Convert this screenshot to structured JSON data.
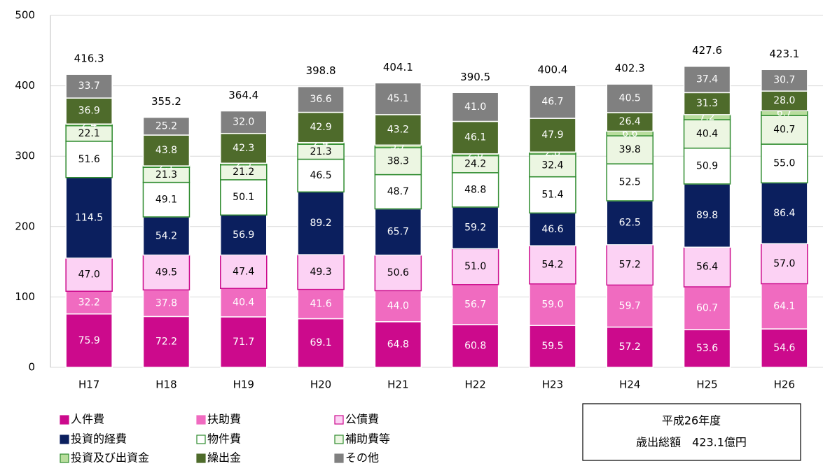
{
  "chart_data": {
    "type": "stacked_bar",
    "categories": [
      "H17",
      "H18",
      "H19",
      "H20",
      "H21",
      "H22",
      "H23",
      "H24",
      "H25",
      "H26"
    ],
    "series": [
      {
        "name": "人件費",
        "color": "#cc0a8c",
        "border": "#ffffff",
        "label_color": "#ffffff",
        "values": [
          75.9,
          72.2,
          71.7,
          69.1,
          64.8,
          60.8,
          59.5,
          57.2,
          53.6,
          54.6
        ],
        "value_labels": [
          "75.9",
          "72.2",
          "71.7",
          "69.1",
          "64.8",
          "60.8",
          "59.5",
          "57.2",
          "53.6",
          "54.6"
        ]
      },
      {
        "name": "扶助費",
        "color": "#f06bc0",
        "border": "#ffffff",
        "label_color": "#ffffff",
        "values": [
          32.2,
          37.8,
          40.4,
          41.6,
          44.0,
          56.7,
          59.0,
          59.7,
          60.7,
          64.1
        ],
        "value_labels": [
          "32.2",
          "37.8",
          "40.4",
          "41.6",
          "44.0",
          "56.7",
          "59.0",
          "59.7",
          "60.7",
          "64.1"
        ]
      },
      {
        "name": "公債費",
        "color": "#fcd2f4",
        "border": "#cc0a8c",
        "label_color": "#000000",
        "values": [
          47.0,
          49.5,
          47.4,
          49.3,
          50.6,
          51.0,
          54.2,
          57.2,
          56.4,
          57.0
        ],
        "value_labels": [
          "47.0",
          "49.5",
          "47.4",
          "49.3",
          "50.6",
          "51.0",
          "54.2",
          "57.2",
          "56.4",
          "57.0"
        ]
      },
      {
        "name": "投資的経費",
        "color": "#0b1f5e",
        "border": "#ffffff",
        "label_color": "#ffffff",
        "values": [
          114.5,
          54.2,
          56.9,
          89.2,
          65.7,
          59.2,
          46.6,
          62.5,
          89.8,
          86.4
        ],
        "value_labels": [
          "114.5",
          "54.2",
          "56.9",
          "89.2",
          "65.7",
          "59.2",
          "46.6",
          "62.5",
          "89.8",
          "86.4"
        ]
      },
      {
        "name": "物件費",
        "color": "#ffffff",
        "border": "#2e8b2e",
        "label_color": "#000000",
        "values": [
          51.6,
          49.1,
          50.1,
          46.5,
          48.7,
          48.8,
          51.4,
          52.5,
          50.9,
          55.0
        ],
        "value_labels": [
          "51.6",
          "49.1",
          "50.1",
          "46.5",
          "48.7",
          "48.8",
          "51.4",
          "52.5",
          "50.9",
          "55.0"
        ]
      },
      {
        "name": "補助費等",
        "color": "#ecf6e2",
        "border": "#2e8b2e",
        "label_color": "#000000",
        "values": [
          22.1,
          21.3,
          21.2,
          21.3,
          38.3,
          24.2,
          32.4,
          39.8,
          40.4,
          40.7
        ],
        "value_labels": [
          "22.1",
          "21.3",
          "21.2",
          "21.3",
          "38.3",
          "24.2",
          "32.4",
          "39.8",
          "40.4",
          "40.7"
        ]
      },
      {
        "name": "投資及び出資金",
        "color": "#b9dd9d",
        "border": "#2e8b2e",
        "label_color": "#ffffff",
        "values": [
          2.4,
          2.1,
          2.3,
          2.4,
          3.7,
          2.6,
          2.8,
          6.6,
          7.2,
          6.7
        ],
        "value_labels": [
          "2.4",
          "2.1",
          "2.3",
          "2.4",
          "3.7",
          "2.6",
          "2.8",
          "6.6",
          "7.2",
          "6.7"
        ]
      },
      {
        "name": "繰出金",
        "color": "#4e6b2b",
        "border": "#ffffff",
        "label_color": "#ffffff",
        "values": [
          36.9,
          43.8,
          42.3,
          42.9,
          43.2,
          46.1,
          47.9,
          26.4,
          31.3,
          28.0
        ],
        "value_labels": [
          "36.9",
          "43.8",
          "42.3",
          "42.9",
          "43.2",
          "46.1",
          "47.9",
          "26.4",
          "31.3",
          "28.0"
        ]
      },
      {
        "name": "その他",
        "color": "#808080",
        "border": "#ffffff",
        "label_color": "#ffffff",
        "values": [
          33.7,
          25.2,
          32.0,
          36.6,
          45.1,
          41.0,
          46.7,
          40.5,
          37.4,
          30.7
        ],
        "value_labels": [
          "33.7",
          "25.2",
          "32.0",
          "36.6",
          "45.1",
          "41.0",
          "46.7",
          "40.5",
          "37.4",
          "30.7"
        ]
      }
    ],
    "totals": [
      416.3,
      355.2,
      364.4,
      398.8,
      404.1,
      390.5,
      400.4,
      402.3,
      427.6,
      423.1
    ],
    "ylim": [
      0,
      500
    ],
    "yticks": [
      0,
      100,
      200,
      300,
      400,
      500
    ],
    "grid": true,
    "annotation": [
      "平成26年度",
      "歳出総額　423.1億円"
    ]
  }
}
